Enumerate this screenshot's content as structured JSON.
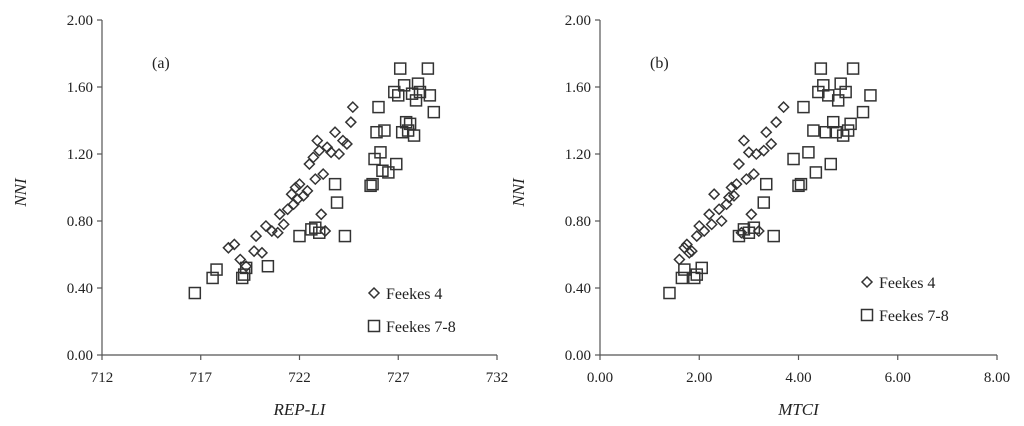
{
  "chart_data": [
    {
      "type": "scatter",
      "panel_label": "(a)",
      "xlabel": "REP-LI",
      "ylabel": "NNI",
      "xlim": [
        712,
        732
      ],
      "ylim": [
        0.0,
        2.0
      ],
      "x_ticks": [
        "712",
        "717",
        "722",
        "727",
        "732"
      ],
      "y_ticks": [
        "0.00",
        "0.40",
        "0.80",
        "1.20",
        "1.60",
        "2.00"
      ],
      "legend_placement": "bottom-right",
      "series": [
        {
          "name": "Feekes 4",
          "marker": "diamond",
          "points": [
            [
              718.4,
              0.64
            ],
            [
              718.7,
              0.66
            ],
            [
              719.0,
              0.57
            ],
            [
              719.3,
              0.53
            ],
            [
              719.7,
              0.62
            ],
            [
              719.8,
              0.71
            ],
            [
              720.1,
              0.61
            ],
            [
              720.3,
              0.77
            ],
            [
              720.6,
              0.74
            ],
            [
              720.9,
              0.73
            ],
            [
              721.0,
              0.84
            ],
            [
              721.2,
              0.78
            ],
            [
              721.4,
              0.87
            ],
            [
              721.6,
              0.96
            ],
            [
              721.7,
              0.9
            ],
            [
              721.8,
              1.0
            ],
            [
              721.9,
              0.93
            ],
            [
              722.0,
              1.02
            ],
            [
              722.2,
              0.95
            ],
            [
              722.4,
              0.98
            ],
            [
              722.5,
              1.14
            ],
            [
              722.7,
              1.18
            ],
            [
              722.8,
              1.05
            ],
            [
              722.9,
              1.28
            ],
            [
              723.0,
              1.22
            ],
            [
              723.1,
              0.84
            ],
            [
              723.2,
              1.08
            ],
            [
              723.3,
              0.74
            ],
            [
              723.4,
              1.24
            ],
            [
              723.6,
              1.21
            ],
            [
              723.8,
              1.33
            ],
            [
              724.0,
              1.2
            ],
            [
              724.2,
              1.28
            ],
            [
              724.4,
              1.26
            ],
            [
              724.6,
              1.39
            ],
            [
              724.7,
              1.48
            ]
          ]
        },
        {
          "name": "Feekes 7-8",
          "marker": "square",
          "points": [
            [
              716.7,
              0.37
            ],
            [
              717.6,
              0.46
            ],
            [
              717.8,
              0.51
            ],
            [
              719.1,
              0.46
            ],
            [
              719.2,
              0.48
            ],
            [
              719.3,
              0.52
            ],
            [
              720.4,
              0.53
            ],
            [
              722.0,
              0.71
            ],
            [
              722.6,
              0.75
            ],
            [
              722.8,
              0.76
            ],
            [
              723.0,
              0.73
            ],
            [
              723.8,
              1.02
            ],
            [
              723.9,
              0.91
            ],
            [
              724.3,
              0.71
            ],
            [
              725.6,
              1.01
            ],
            [
              725.7,
              1.02
            ],
            [
              725.8,
              1.17
            ],
            [
              725.9,
              1.33
            ],
            [
              726.0,
              1.48
            ],
            [
              726.1,
              1.21
            ],
            [
              726.2,
              1.1
            ],
            [
              726.3,
              1.34
            ],
            [
              726.5,
              1.09
            ],
            [
              726.8,
              1.57
            ],
            [
              726.9,
              1.14
            ],
            [
              727.0,
              1.55
            ],
            [
              727.1,
              1.71
            ],
            [
              727.2,
              1.33
            ],
            [
              727.3,
              1.61
            ],
            [
              727.4,
              1.39
            ],
            [
              727.5,
              1.34
            ],
            [
              727.6,
              1.38
            ],
            [
              727.7,
              1.56
            ],
            [
              727.8,
              1.31
            ],
            [
              727.9,
              1.52
            ],
            [
              728.0,
              1.62
            ],
            [
              728.1,
              1.57
            ],
            [
              728.5,
              1.71
            ],
            [
              728.6,
              1.55
            ],
            [
              728.8,
              1.45
            ]
          ]
        }
      ]
    },
    {
      "type": "scatter",
      "panel_label": "(b)",
      "xlabel": "MTCI",
      "ylabel": "NNI",
      "xlim": [
        0.0,
        8.0
      ],
      "ylim": [
        0.0,
        2.0
      ],
      "x_ticks": [
        "0.00",
        "2.00",
        "4.00",
        "6.00",
        "8.00"
      ],
      "y_ticks": [
        "0.00",
        "0.40",
        "0.80",
        "1.20",
        "1.60",
        "2.00"
      ],
      "legend_placement": "bottom-right",
      "series": [
        {
          "name": "Feekes 4",
          "marker": "diamond",
          "points": [
            [
              1.6,
              0.57
            ],
            [
              1.7,
              0.64
            ],
            [
              1.75,
              0.66
            ],
            [
              1.8,
              0.61
            ],
            [
              1.85,
              0.62
            ],
            [
              1.95,
              0.71
            ],
            [
              2.0,
              0.77
            ],
            [
              2.1,
              0.74
            ],
            [
              2.2,
              0.84
            ],
            [
              2.25,
              0.78
            ],
            [
              2.3,
              0.96
            ],
            [
              2.4,
              0.87
            ],
            [
              2.45,
              0.8
            ],
            [
              2.55,
              0.9
            ],
            [
              2.6,
              0.94
            ],
            [
              2.65,
              1.0
            ],
            [
              2.7,
              0.95
            ],
            [
              2.75,
              1.02
            ],
            [
              2.8,
              1.14
            ],
            [
              2.85,
              0.73
            ],
            [
              2.9,
              1.28
            ],
            [
              2.95,
              1.05
            ],
            [
              3.0,
              1.21
            ],
            [
              3.05,
              0.84
            ],
            [
              3.1,
              1.08
            ],
            [
              3.15,
              1.2
            ],
            [
              3.2,
              0.74
            ],
            [
              3.3,
              1.22
            ],
            [
              3.35,
              1.33
            ],
            [
              3.45,
              1.26
            ],
            [
              3.55,
              1.39
            ],
            [
              3.7,
              1.48
            ]
          ]
        },
        {
          "name": "Feekes 7-8",
          "marker": "square",
          "points": [
            [
              1.4,
              0.37
            ],
            [
              1.65,
              0.46
            ],
            [
              1.7,
              0.51
            ],
            [
              1.9,
              0.46
            ],
            [
              1.95,
              0.48
            ],
            [
              2.05,
              0.52
            ],
            [
              2.8,
              0.71
            ],
            [
              2.9,
              0.75
            ],
            [
              3.0,
              0.73
            ],
            [
              3.1,
              0.76
            ],
            [
              3.3,
              0.91
            ],
            [
              3.35,
              1.02
            ],
            [
              3.5,
              0.71
            ],
            [
              3.9,
              1.17
            ],
            [
              4.0,
              1.01
            ],
            [
              4.05,
              1.02
            ],
            [
              4.1,
              1.48
            ],
            [
              4.2,
              1.21
            ],
            [
              4.3,
              1.34
            ],
            [
              4.35,
              1.09
            ],
            [
              4.4,
              1.57
            ],
            [
              4.45,
              1.71
            ],
            [
              4.5,
              1.61
            ],
            [
              4.55,
              1.33
            ],
            [
              4.6,
              1.55
            ],
            [
              4.65,
              1.14
            ],
            [
              4.7,
              1.39
            ],
            [
              4.75,
              1.33
            ],
            [
              4.8,
              1.52
            ],
            [
              4.85,
              1.62
            ],
            [
              4.9,
              1.31
            ],
            [
              4.95,
              1.57
            ],
            [
              5.0,
              1.34
            ],
            [
              5.05,
              1.38
            ],
            [
              5.1,
              1.71
            ],
            [
              5.3,
              1.45
            ],
            [
              5.45,
              1.55
            ]
          ]
        }
      ]
    }
  ]
}
